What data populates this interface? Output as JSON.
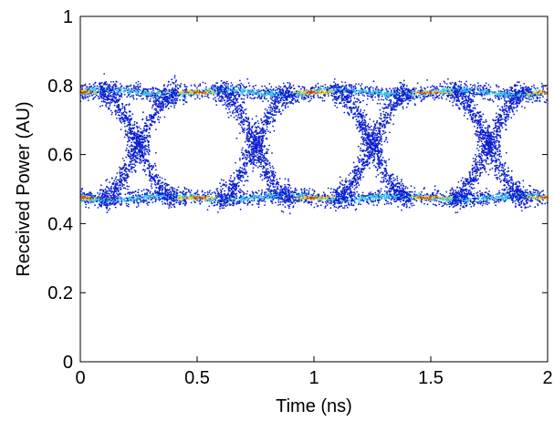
{
  "chart_data": {
    "type": "heatmap",
    "title": "",
    "xlabel": "Time (ns)",
    "ylabel": "Received Power (AU)",
    "xlim": [
      0,
      2
    ],
    "ylim": [
      0,
      1
    ],
    "xticks": [
      0,
      0.5,
      1,
      1.5,
      2
    ],
    "yticks": [
      0,
      0.2,
      0.4,
      0.6,
      0.8,
      1
    ],
    "xtick_labels": [
      "0",
      "0.5",
      "1",
      "1.5",
      "2"
    ],
    "ytick_labels": [
      "0",
      "0.2",
      "0.4",
      "0.6",
      "0.8",
      "1"
    ],
    "grid": false,
    "legend": "none",
    "colormap": "jet",
    "eye_diagram": {
      "high_level": 0.78,
      "low_level": 0.475,
      "level_spread": 0.012,
      "crossing_times": [
        0.25,
        0.75,
        1.25,
        1.75
      ],
      "crossing_level": 0.63,
      "transition_duration": 0.32
    },
    "colors": {
      "low_density": "#0b1fd0",
      "mid_density": "#39c9e6",
      "high_density": "#f0d22a",
      "peak_density": "#c83a10"
    }
  }
}
